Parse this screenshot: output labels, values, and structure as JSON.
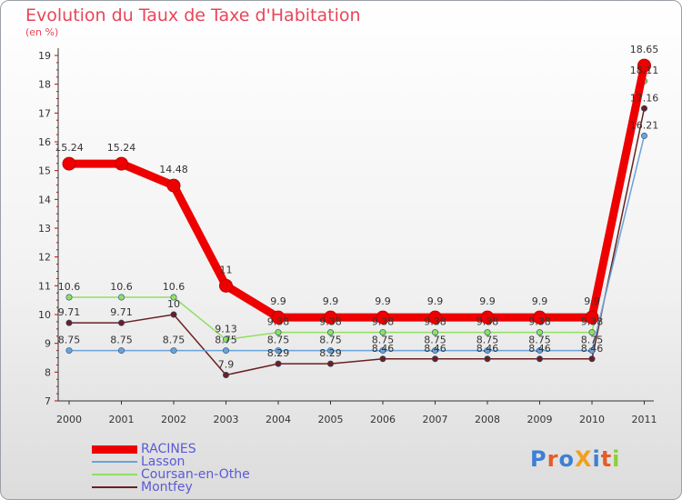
{
  "title": "Evolution du Taux de Taxe d'Habitation",
  "unit": "(en %)",
  "logo": "ProXiti",
  "chart_data": {
    "type": "line",
    "x": [
      "2000",
      "2001",
      "2002",
      "2003",
      "2004",
      "2005",
      "2006",
      "2007",
      "2008",
      "2009",
      "2010",
      "2011"
    ],
    "ylim": [
      7,
      19
    ],
    "yticks": [
      "7",
      "8",
      "9",
      "10",
      "11",
      "12",
      "13",
      "14",
      "15",
      "16",
      "17",
      "18",
      "19"
    ],
    "grid": false,
    "legend_position": "bottom-left",
    "series": [
      {
        "name": "RACINES",
        "color": "#ee0000",
        "values": [
          15.24,
          15.24,
          14.48,
          11,
          9.9,
          9.9,
          9.9,
          9.9,
          9.9,
          9.9,
          9.9,
          18.65
        ],
        "labels": [
          "15.24",
          "15.24",
          "14.48",
          "11",
          "9.9",
          "9.9",
          "9.9",
          "9.9",
          "9.9",
          "9.9",
          "9.9",
          "18.65"
        ]
      },
      {
        "name": "Lasson",
        "color": "#6aa3d8",
        "values": [
          8.75,
          8.75,
          8.75,
          8.75,
          8.75,
          8.75,
          8.75,
          8.75,
          8.75,
          8.75,
          8.75,
          16.21
        ],
        "labels": [
          "8.75",
          "8.75",
          "8.75",
          "8.75",
          "8.75",
          "8.75",
          "8.75",
          "8.75",
          "8.75",
          "8.75",
          "8.75",
          "16.21"
        ]
      },
      {
        "name": "Coursan-en-Othe",
        "color": "#8fe060",
        "values": [
          10.6,
          10.6,
          10.6,
          9.13,
          9.38,
          9.38,
          9.38,
          9.38,
          9.38,
          9.38,
          9.38,
          18.11
        ],
        "labels": [
          "10.6",
          "10.6",
          "10.6",
          "9.13",
          "9.38",
          "9.38",
          "9.38",
          "9.38",
          "9.38",
          "9.38",
          "9.38",
          "18.11"
        ]
      },
      {
        "name": "Montfey",
        "color": "#6b2020",
        "values": [
          9.71,
          9.71,
          10,
          7.9,
          8.29,
          8.29,
          8.46,
          8.46,
          8.46,
          8.46,
          8.46,
          17.16
        ],
        "labels": [
          "9.71",
          "9.71",
          "10",
          "7.9",
          "8.29",
          "8.29",
          "8.46",
          "8.46",
          "8.46",
          "8.46",
          "8.46",
          "17.16"
        ]
      }
    ]
  }
}
